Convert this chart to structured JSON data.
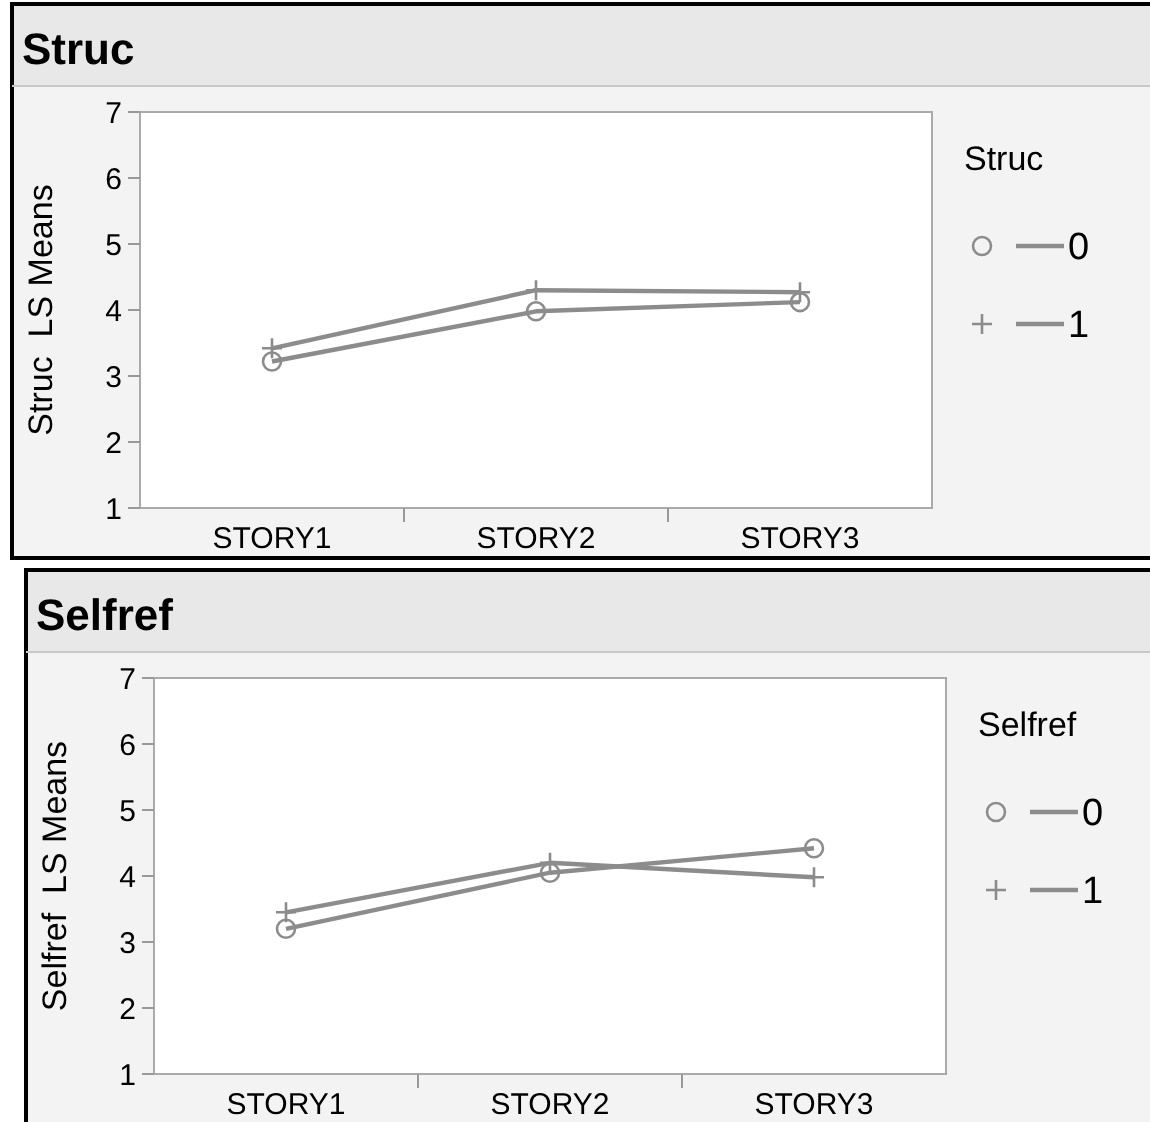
{
  "chart_data": [
    {
      "type": "line",
      "title": "Struc",
      "ylabel": "Struc  LS Means",
      "legend_title": "Struc",
      "categories": [
        "STORY1",
        "STORY2",
        "STORY3"
      ],
      "ylim": [
        1,
        7
      ],
      "yticks": [
        1,
        2,
        3,
        4,
        5,
        6,
        7
      ],
      "grid": false,
      "legend": "right",
      "series": [
        {
          "name": "0",
          "color": "#8c8c8c",
          "marker": "circle",
          "values": [
            3.22,
            3.98,
            4.12
          ]
        },
        {
          "name": "1",
          "color": "#8c8c8c",
          "marker": "cross",
          "values": [
            3.42,
            4.3,
            4.27
          ]
        }
      ]
    },
    {
      "type": "line",
      "title": "Selfref",
      "ylabel": "Selfref  LS Means",
      "legend_title": "Selfref",
      "categories": [
        "STORY1",
        "STORY2",
        "STORY3"
      ],
      "ylim": [
        1,
        7
      ],
      "yticks": [
        1,
        2,
        3,
        4,
        5,
        6,
        7
      ],
      "grid": false,
      "legend": "right",
      "series": [
        {
          "name": "0",
          "color": "#8c8c8c",
          "marker": "circle",
          "values": [
            3.2,
            4.05,
            4.42
          ]
        },
        {
          "name": "1",
          "color": "#8c8c8c",
          "marker": "cross",
          "values": [
            3.45,
            4.2,
            3.98
          ]
        }
      ]
    }
  ]
}
